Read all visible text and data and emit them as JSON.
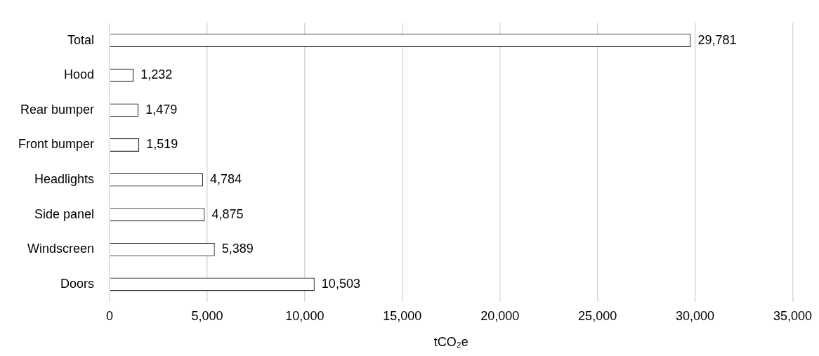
{
  "chart_data": {
    "type": "bar",
    "orientation": "horizontal",
    "xlabel": "tCO₂e",
    "categories": [
      "Total",
      "Hood",
      "Rear bumper",
      "Front bumper",
      "Headlights",
      "Side panel",
      "Windscreen",
      "Doors"
    ],
    "values": [
      29781,
      1232,
      1479,
      1519,
      4784,
      4875,
      5389,
      10503
    ],
    "value_labels": [
      "29,781",
      "1,232",
      "1,479",
      "1,519",
      "4,784",
      "4,875",
      "5,389",
      "10,503"
    ],
    "color": "#ffffff",
    "xlim": [
      0,
      35000
    ],
    "xticks": [
      {
        "value": 0,
        "label": "0"
      },
      {
        "value": 5000,
        "label": "5,000"
      },
      {
        "value": 10000,
        "label": "10,000"
      },
      {
        "value": 15000,
        "label": "15,000"
      },
      {
        "value": 20000,
        "label": "20,000"
      },
      {
        "value": 25000,
        "label": "25,000"
      },
      {
        "value": 30000,
        "label": "30,000"
      },
      {
        "value": 35000,
        "label": "35,000"
      }
    ],
    "grid": "x",
    "legend": false
  }
}
